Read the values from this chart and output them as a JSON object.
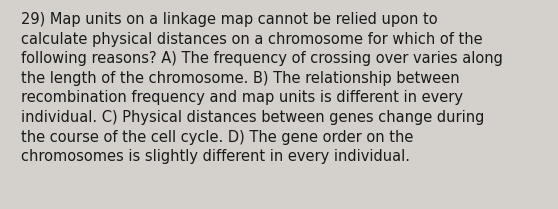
{
  "lines": [
    "29) Map units on a linkage map cannot be relied upon to",
    "calculate physical distances on a chromosome for which of the",
    "following reasons? A) The frequency of crossing over varies along",
    "the length of the chromosome. B) The relationship between",
    "recombination frequency and map units is different in every",
    "individual. C) Physical distances between genes change during",
    "the course of the cell cycle. D) The gene order on the",
    "chromosomes is slightly different in every individual."
  ],
  "background_color": "#d4d1cc",
  "text_color": "#1a1a1a",
  "font_size": 10.5,
  "fig_width": 5.58,
  "fig_height": 2.09,
  "linespacing": 1.38
}
